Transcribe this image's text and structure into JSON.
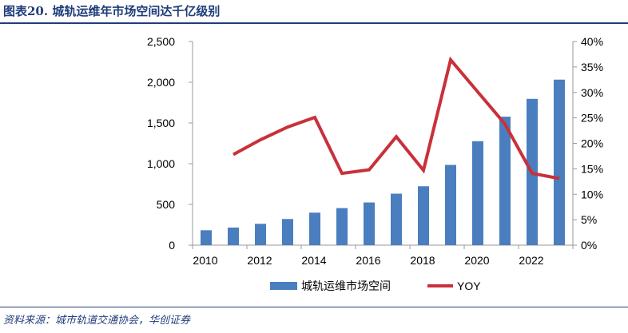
{
  "title": "图表20. 城轨运维年市场空间达千亿级别",
  "source": "资料来源：城市轨道交通协会，华创证券",
  "chart_data": {
    "type": "bar+line",
    "categories": [
      "2010",
      "2011",
      "2012",
      "2013",
      "2014",
      "2015",
      "2016",
      "2017",
      "2018",
      "2019",
      "2020",
      "2021",
      "2022",
      "2023"
    ],
    "x_tick_labels": [
      "2010",
      "2012",
      "2014",
      "2016",
      "2018",
      "2020",
      "2022"
    ],
    "series": [
      {
        "name": "城轨运维市场空间",
        "type": "bar",
        "axis": "left",
        "color": "#4a7ebf",
        "values": [
          183,
          216,
          262,
          321,
          399,
          455,
          524,
          632,
          723,
          985,
          1276,
          1577,
          1796,
          2032
        ]
      },
      {
        "name": "YOY",
        "type": "line",
        "axis": "right",
        "color": "#c8313b",
        "values": [
          null,
          17.8,
          20.7,
          23.2,
          25.1,
          14.1,
          14.8,
          21.3,
          14.7,
          36.4,
          30.1,
          23.8,
          14.1,
          13.1
        ]
      }
    ],
    "left_axis": {
      "ylim": [
        0,
        2500
      ],
      "ticks": [
        "0",
        "500",
        "1,000",
        "1,500",
        "2,000",
        "2,500"
      ]
    },
    "right_axis": {
      "ylim": [
        0,
        40
      ],
      "ticks": [
        "0%",
        "5%",
        "10%",
        "15%",
        "20%",
        "25%",
        "30%",
        "35%",
        "40%"
      ]
    },
    "grid": false,
    "legend": "bottom"
  }
}
